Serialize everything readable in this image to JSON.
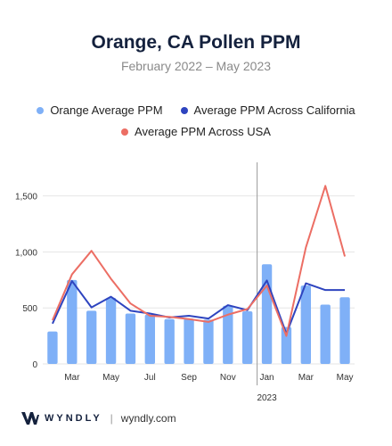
{
  "header": {
    "title": "Orange, CA Pollen PPM",
    "subtitle": "February 2022 – May 2023"
  },
  "footer": {
    "brand": "WYNDLY",
    "separator": "|",
    "site": "wyndly.com"
  },
  "chart_data": {
    "type": "bar",
    "categories": [
      "Feb 2022",
      "Mar 2022",
      "Apr 2022",
      "May 2022",
      "Jun 2022",
      "Jul 2022",
      "Aug 2022",
      "Sep 2022",
      "Oct 2022",
      "Nov 2022",
      "Dec 2022",
      "Jan 2023",
      "Feb 2023",
      "Mar 2023",
      "Apr 2023",
      "May 2023"
    ],
    "x_tick_labels": [
      {
        "index": 1,
        "label": "Mar"
      },
      {
        "index": 3,
        "label": "May"
      },
      {
        "index": 5,
        "label": "Jul"
      },
      {
        "index": 7,
        "label": "Sep"
      },
      {
        "index": 9,
        "label": "Nov"
      },
      {
        "index": 11,
        "label": "Jan"
      },
      {
        "index": 13,
        "label": "Mar"
      },
      {
        "index": 15,
        "label": "May"
      }
    ],
    "year_label": {
      "index": 11,
      "label": "2023"
    },
    "year_divider_before_index": 11,
    "ylim": [
      0,
      1800
    ],
    "y_ticks": [
      0,
      500,
      1000,
      1500
    ],
    "y_tick_labels": [
      "0",
      "500",
      "1,000",
      "1,500"
    ],
    "grid": true,
    "series": [
      {
        "name": "Orange Average PPM",
        "kind": "bar",
        "color": "#7fb0f7",
        "values": [
          290,
          750,
          475,
          590,
          450,
          440,
          400,
          405,
          395,
          520,
          470,
          890,
          330,
          700,
          530,
          595
        ]
      },
      {
        "name": "Average PPM Across California",
        "kind": "line",
        "color": "#2e44bf",
        "values": [
          360,
          740,
          505,
          600,
          475,
          450,
          415,
          430,
          405,
          525,
          480,
          745,
          270,
          720,
          660,
          660
        ]
      },
      {
        "name": "Average PPM Across USA",
        "kind": "line",
        "color": "#ec6e64",
        "values": [
          390,
          800,
          1010,
          760,
          540,
          430,
          420,
          400,
          375,
          440,
          490,
          700,
          250,
          1040,
          1590,
          960
        ]
      }
    ],
    "legend_position": "top"
  }
}
